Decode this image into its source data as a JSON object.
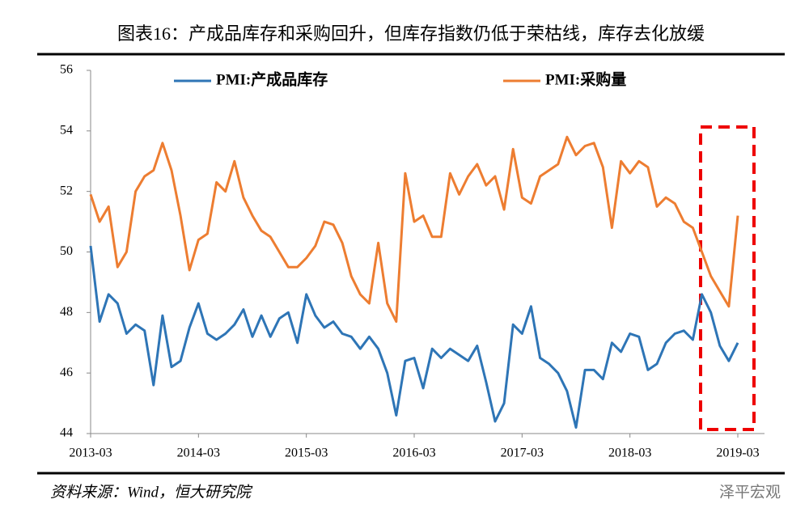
{
  "chart_data": {
    "type": "line",
    "title": "图表16：产成品库存和采购回升，但库存指数仍低于荣枯线，库存去化放缓",
    "source": "资料来源：Wind，恒大研究院",
    "watermark": "泽平宏观",
    "categories": [
      "2013-03",
      null,
      null,
      null,
      null,
      null,
      null,
      null,
      null,
      null,
      null,
      null,
      "2014-03",
      null,
      null,
      null,
      null,
      null,
      null,
      null,
      null,
      null,
      null,
      null,
      "2015-03",
      null,
      null,
      null,
      null,
      null,
      null,
      null,
      null,
      null,
      null,
      null,
      "2016-03",
      null,
      null,
      null,
      null,
      null,
      null,
      null,
      null,
      null,
      null,
      null,
      "2017-03",
      null,
      null,
      null,
      null,
      null,
      null,
      null,
      null,
      null,
      null,
      null,
      "2018-03",
      null,
      null,
      null,
      null,
      null,
      null,
      null,
      null,
      null,
      null,
      null,
      "2019-03"
    ],
    "series": [
      {
        "name": "PMI:产成品库存",
        "color": "#2e75b6",
        "values": [
          50.2,
          47.7,
          48.6,
          48.3,
          47.3,
          47.6,
          47.4,
          45.6,
          47.9,
          46.2,
          46.4,
          47.5,
          48.3,
          47.3,
          47.1,
          47.3,
          47.6,
          48.1,
          47.2,
          47.9,
          47.2,
          47.8,
          48.0,
          47.0,
          48.6,
          47.9,
          47.5,
          47.7,
          47.3,
          47.2,
          46.8,
          47.2,
          46.8,
          46.0,
          44.6,
          46.4,
          46.5,
          45.5,
          46.8,
          46.5,
          46.8,
          46.6,
          46.4,
          46.9,
          45.7,
          44.4,
          45.0,
          47.6,
          47.3,
          48.2,
          46.5,
          46.3,
          46.0,
          45.4,
          44.2,
          46.1,
          46.1,
          45.8,
          47.0,
          46.7,
          47.3,
          47.2,
          46.1,
          46.3,
          47.0,
          47.3,
          47.4,
          47.1,
          48.6,
          48.0,
          46.9,
          46.4,
          47.0
        ]
      },
      {
        "name": "PMI:采购量",
        "color": "#ed7d31",
        "values": [
          51.9,
          51.0,
          51.5,
          49.5,
          50.0,
          52.0,
          52.5,
          52.7,
          53.6,
          52.7,
          51.2,
          49.4,
          50.4,
          50.6,
          52.3,
          52.0,
          53.0,
          51.8,
          51.2,
          50.7,
          50.5,
          50.0,
          49.5,
          49.5,
          49.8,
          50.2,
          51.0,
          50.9,
          50.3,
          49.2,
          48.6,
          48.3,
          50.3,
          48.3,
          47.7,
          52.6,
          51.0,
          51.2,
          50.5,
          50.5,
          52.6,
          51.9,
          52.5,
          52.9,
          52.2,
          52.5,
          51.4,
          53.4,
          51.8,
          51.6,
          52.5,
          52.7,
          52.9,
          53.8,
          53.2,
          53.5,
          53.6,
          52.8,
          50.8,
          53.0,
          52.6,
          53.0,
          52.8,
          51.5,
          51.8,
          51.6,
          51.0,
          50.8,
          50.0,
          49.2,
          48.7,
          48.2,
          51.2
        ]
      }
    ],
    "ylim": [
      44,
      56
    ],
    "yticks": [
      44,
      46,
      48,
      50,
      52,
      54,
      56
    ]
  }
}
